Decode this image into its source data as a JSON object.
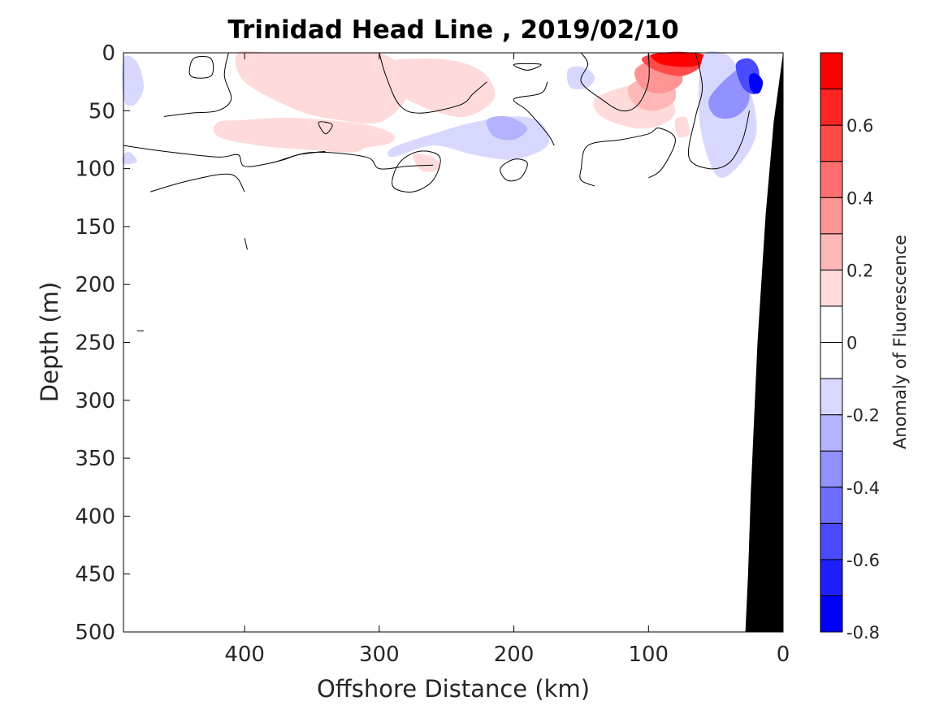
{
  "chart_data": {
    "type": "heatmap",
    "title": "Trinidad Head Line , 2019/02/10",
    "xlabel": "Offshore Distance (km)",
    "ylabel": "Depth (m)",
    "xlim": [
      490,
      0
    ],
    "ylim": [
      0,
      500
    ],
    "x_reversed": true,
    "y_reversed": true,
    "x_ticks": [
      400,
      300,
      200,
      100,
      0
    ],
    "y_ticks": [
      0,
      50,
      100,
      150,
      200,
      250,
      300,
      350,
      400,
      450,
      500
    ],
    "colorbar": {
      "label": "Anomaly of Fluorescence",
      "range": [
        -0.8,
        0.8
      ],
      "levels": [
        -0.8,
        -0.7,
        -0.6,
        -0.5,
        -0.4,
        -0.3,
        -0.2,
        -0.1,
        0,
        0.1,
        0.2,
        0.3,
        0.4,
        0.5,
        0.6,
        0.7,
        0.8
      ],
      "tick_values": [
        -0.8,
        -0.6,
        -0.4,
        -0.2,
        0,
        0.2,
        0.4,
        0.6
      ],
      "tick_labels": [
        "-0.8",
        "-0.6",
        "-0.4",
        "-0.2",
        "0",
        "0.2",
        "0.4",
        "0.6"
      ],
      "colors": [
        "#0000ff",
        "#2020ff",
        "#4a4aff",
        "#6f6fff",
        "#9191ff",
        "#b3b3ff",
        "#d8d8ff",
        "#ffffff",
        "#ffffff",
        "#ffdada",
        "#ffb8b8",
        "#ff9494",
        "#ff6f6f",
        "#ff4a4a",
        "#ff2424",
        "#ff0000"
      ]
    },
    "bathymetry_color": "#000000",
    "bathymetry": {
      "x": [
        0,
        7,
        13,
        19,
        24,
        26,
        28
      ],
      "depth": [
        0,
        60,
        140,
        250,
        380,
        450,
        500
      ]
    },
    "anomaly_patches": [
      {
        "value": 0.15,
        "x": [
          420,
          400,
          370,
          340,
          310,
          290,
          292,
          310,
          320,
          350,
          390,
          420
        ],
        "depth": [
          60,
          58,
          56,
          58,
          62,
          70,
          78,
          82,
          86,
          84,
          80,
          72
        ]
      },
      {
        "value": 0.15,
        "x": [
          405,
          380,
          350,
          320,
          295,
          280,
          280,
          300,
          330,
          360,
          400
        ],
        "depth": [
          0,
          0,
          0,
          0,
          2,
          20,
          40,
          60,
          58,
          50,
          25
        ]
      },
      {
        "value": 0.15,
        "x": [
          295,
          270,
          240,
          220,
          215,
          235,
          260,
          285
        ],
        "depth": [
          10,
          5,
          8,
          20,
          40,
          55,
          50,
          35
        ]
      },
      {
        "value": 0.15,
        "x": [
          275,
          260,
          255,
          268
        ],
        "depth": [
          88,
          90,
          100,
          102
        ]
      },
      {
        "value": 0.15,
        "x": [
          140,
          120,
          100,
          90,
          80,
          90,
          110,
          135
        ],
        "depth": [
          40,
          30,
          25,
          30,
          50,
          62,
          65,
          55
        ]
      },
      {
        "value": 0.25,
        "x": [
          115,
          100,
          85,
          80,
          95,
          110
        ],
        "depth": [
          30,
          20,
          18,
          40,
          50,
          45
        ]
      },
      {
        "value": 0.35,
        "x": [
          110,
          95,
          80,
          75,
          90,
          105
        ],
        "depth": [
          15,
          5,
          5,
          25,
          35,
          30
        ]
      },
      {
        "value": 0.5,
        "x": [
          105,
          90,
          70,
          60,
          75,
          95
        ],
        "depth": [
          5,
          0,
          0,
          10,
          20,
          15
        ]
      },
      {
        "value": 0.7,
        "x": [
          98,
          85,
          65,
          55,
          68,
          90
        ],
        "depth": [
          2,
          0,
          0,
          5,
          12,
          10
        ]
      },
      {
        "value": 0.15,
        "x": [
          80,
          72,
          70,
          78
        ],
        "depth": [
          58,
          56,
          70,
          72
        ]
      },
      {
        "value": -0.15,
        "x": [
          290,
          260,
          230,
          200,
          180,
          175,
          200,
          230,
          260,
          290
        ],
        "depth": [
          82,
          70,
          60,
          55,
          60,
          80,
          92,
          88,
          80,
          90
        ]
      },
      {
        "value": -0.25,
        "x": [
          220,
          205,
          190,
          200,
          215
        ],
        "depth": [
          58,
          55,
          65,
          75,
          72
        ]
      },
      {
        "value": -0.15,
        "x": [
          160,
          150,
          140,
          145,
          158
        ],
        "depth": [
          15,
          12,
          20,
          30,
          30
        ]
      },
      {
        "value": -0.15,
        "x": [
          60,
          45,
          35,
          25,
          20,
          35,
          50,
          62
        ],
        "depth": [
          5,
          0,
          10,
          30,
          70,
          100,
          105,
          60
        ]
      },
      {
        "value": -0.35,
        "x": [
          55,
          40,
          30,
          25,
          35,
          50
        ],
        "depth": [
          40,
          20,
          15,
          40,
          55,
          55
        ]
      },
      {
        "value": -0.55,
        "x": [
          35,
          25,
          18,
          20,
          30
        ],
        "depth": [
          10,
          5,
          15,
          35,
          30
        ]
      },
      {
        "value": -0.75,
        "x": [
          25,
          20,
          15,
          18,
          24
        ],
        "depth": [
          20,
          18,
          25,
          35,
          32
        ]
      },
      {
        "value": -0.15,
        "x": [
          490,
          480,
          475,
          482,
          490
        ],
        "depth": [
          5,
          8,
          30,
          45,
          40
        ]
      },
      {
        "value": -0.15,
        "x": [
          490,
          485,
          480,
          490
        ],
        "depth": [
          88,
          86,
          94,
          96
        ]
      }
    ],
    "zero_contours": [
      [
        [
          490,
          80
        ],
        [
          460,
          85
        ],
        [
          420,
          90
        ],
        [
          405,
          88
        ],
        [
          400,
          98
        ],
        [
          380,
          95
        ],
        [
          350,
          86
        ],
        [
          310,
          90
        ],
        [
          300,
          100
        ],
        [
          280,
          98
        ],
        [
          260,
          97
        ]
      ],
      [
        [
          470,
          120
        ],
        [
          440,
          110
        ],
        [
          410,
          105
        ],
        [
          400,
          120
        ]
      ],
      [
        [
          400,
          160
        ],
        [
          398,
          170
        ]
      ],
      [
        [
          480,
          240
        ],
        [
          475,
          240
        ]
      ],
      [
        [
          460,
          55
        ],
        [
          440,
          52
        ],
        [
          420,
          50
        ],
        [
          410,
          40
        ],
        [
          415,
          20
        ],
        [
          412,
          0
        ]
      ],
      [
        [
          440,
          20
        ],
        [
          438,
          5
        ],
        [
          425,
          5
        ],
        [
          425,
          20
        ],
        [
          440,
          20
        ]
      ],
      [
        [
          380,
          95
        ],
        [
          370,
          92
        ],
        [
          360,
          88
        ],
        [
          340,
          85
        ]
      ],
      [
        [
          300,
          0
        ],
        [
          295,
          20
        ],
        [
          285,
          45
        ],
        [
          270,
          52
        ],
        [
          240,
          45
        ],
        [
          230,
          35
        ],
        [
          220,
          25
        ]
      ],
      [
        [
          345,
          60
        ],
        [
          335,
          62
        ],
        [
          340,
          70
        ],
        [
          345,
          60
        ]
      ],
      [
        [
          270,
          85
        ],
        [
          285,
          95
        ],
        [
          290,
          115
        ],
        [
          275,
          120
        ],
        [
          260,
          110
        ],
        [
          255,
          90
        ],
        [
          270,
          85
        ]
      ],
      [
        [
          190,
          95
        ],
        [
          200,
          92
        ],
        [
          210,
          100
        ],
        [
          205,
          110
        ],
        [
          195,
          108
        ],
        [
          190,
          95
        ]
      ],
      [
        [
          170,
          80
        ],
        [
          175,
          70
        ],
        [
          190,
          50
        ],
        [
          200,
          40
        ],
        [
          180,
          35
        ],
        [
          175,
          25
        ]
      ],
      [
        [
          200,
          10
        ],
        [
          190,
          15
        ],
        [
          180,
          10
        ],
        [
          200,
          10
        ]
      ],
      [
        [
          150,
          0
        ],
        [
          145,
          10
        ],
        [
          150,
          25
        ],
        [
          135,
          40
        ],
        [
          120,
          50
        ],
        [
          108,
          45
        ],
        [
          100,
          25
        ],
        [
          100,
          0
        ]
      ],
      [
        [
          140,
          115
        ],
        [
          150,
          110
        ],
        [
          150,
          100
        ],
        [
          145,
          80
        ],
        [
          120,
          75
        ],
        [
          100,
          70
        ],
        [
          92,
          65
        ],
        [
          80,
          75
        ],
        [
          90,
          100
        ],
        [
          100,
          108
        ]
      ],
      [
        [
          65,
          0
        ],
        [
          60,
          30
        ],
        [
          65,
          55
        ],
        [
          70,
          90
        ],
        [
          55,
          100
        ],
        [
          40,
          95
        ],
        [
          30,
          75
        ],
        [
          25,
          50
        ]
      ]
    ]
  }
}
